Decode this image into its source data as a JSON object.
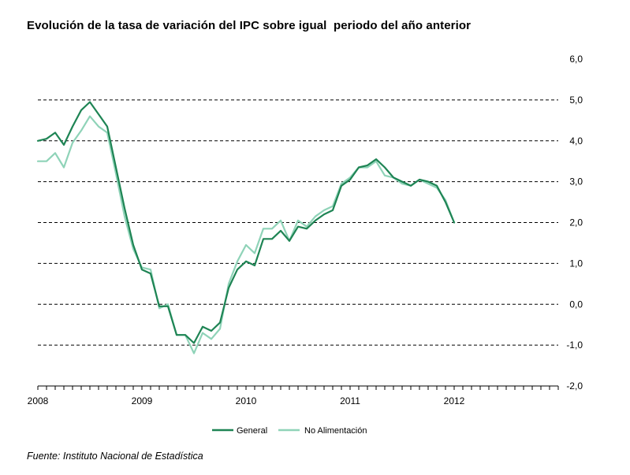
{
  "title": "Evolución de la tasa de variación del IPC sobre igual  periodo del año anterior",
  "source": "Fuente: Instituto Nacional de Estadística",
  "colors": {
    "general": "#1e8454",
    "no_alimentacion": "#8fd3b8",
    "grid": "#000000",
    "axis": "#000000"
  },
  "chart_data": {
    "type": "line",
    "title": "Evolución de la tasa de variación del IPC sobre igual  periodo del año anterior",
    "xlabel": "",
    "ylabel": "",
    "ylim": [
      -2.0,
      6.0
    ],
    "y_ticks": [
      6.0,
      5.0,
      4.0,
      3.0,
      2.0,
      1.0,
      0.0,
      -1.0,
      -2.0
    ],
    "y_tick_labels": [
      "6,0",
      "5,0",
      "4,0",
      "3,0",
      "2,0",
      "1,0",
      "0,0",
      "-1,0",
      "-2,0"
    ],
    "y_axis_side": "right",
    "grid": "horizontal dashed",
    "x_range_months": 60,
    "x_tick_labels": [
      "2008",
      "2009",
      "2010",
      "2011",
      "2012"
    ],
    "x": [
      "2008-01",
      "2008-02",
      "2008-03",
      "2008-04",
      "2008-05",
      "2008-06",
      "2008-07",
      "2008-08",
      "2008-09",
      "2008-10",
      "2008-11",
      "2008-12",
      "2009-01",
      "2009-02",
      "2009-03",
      "2009-04",
      "2009-05",
      "2009-06",
      "2009-07",
      "2009-08",
      "2009-09",
      "2009-10",
      "2009-11",
      "2009-12",
      "2010-01",
      "2010-02",
      "2010-03",
      "2010-04",
      "2010-05",
      "2010-06",
      "2010-07",
      "2010-08",
      "2010-09",
      "2010-10",
      "2010-11",
      "2010-12",
      "2011-01",
      "2011-02",
      "2011-03",
      "2011-04",
      "2011-05",
      "2011-06",
      "2011-07",
      "2011-08",
      "2011-09",
      "2011-10",
      "2011-11",
      "2011-12",
      "2012-01"
    ],
    "series": [
      {
        "name": "General",
        "values": [
          4.0,
          4.05,
          4.2,
          3.9,
          4.35,
          4.75,
          4.95,
          4.65,
          4.35,
          3.35,
          2.35,
          1.45,
          0.85,
          0.75,
          -0.05,
          -0.05,
          -0.75,
          -0.75,
          -0.95,
          -0.55,
          -0.65,
          -0.45,
          0.4,
          0.85,
          1.05,
          0.95,
          1.6,
          1.6,
          1.8,
          1.55,
          1.9,
          1.85,
          2.05,
          2.2,
          2.3,
          2.9,
          3.05,
          3.35,
          3.4,
          3.55,
          3.35,
          3.1,
          3.0,
          2.9,
          3.05,
          3.0,
          2.9,
          2.5,
          2.0
        ]
      },
      {
        "name": "No Alimentación",
        "values": [
          3.5,
          3.5,
          3.7,
          3.35,
          3.95,
          4.25,
          4.6,
          4.35,
          4.2,
          3.2,
          2.15,
          1.35,
          0.9,
          0.85,
          -0.1,
          0.0,
          -0.75,
          -0.75,
          -1.2,
          -0.7,
          -0.85,
          -0.6,
          0.5,
          1.05,
          1.45,
          1.25,
          1.85,
          1.85,
          2.05,
          1.55,
          2.05,
          1.9,
          2.15,
          2.3,
          2.4,
          2.95,
          3.1,
          3.35,
          3.35,
          3.5,
          3.15,
          3.1,
          2.95,
          2.9,
          3.05,
          2.95,
          2.85,
          2.55,
          2.0
        ]
      }
    ],
    "legend_position": "bottom-center"
  }
}
